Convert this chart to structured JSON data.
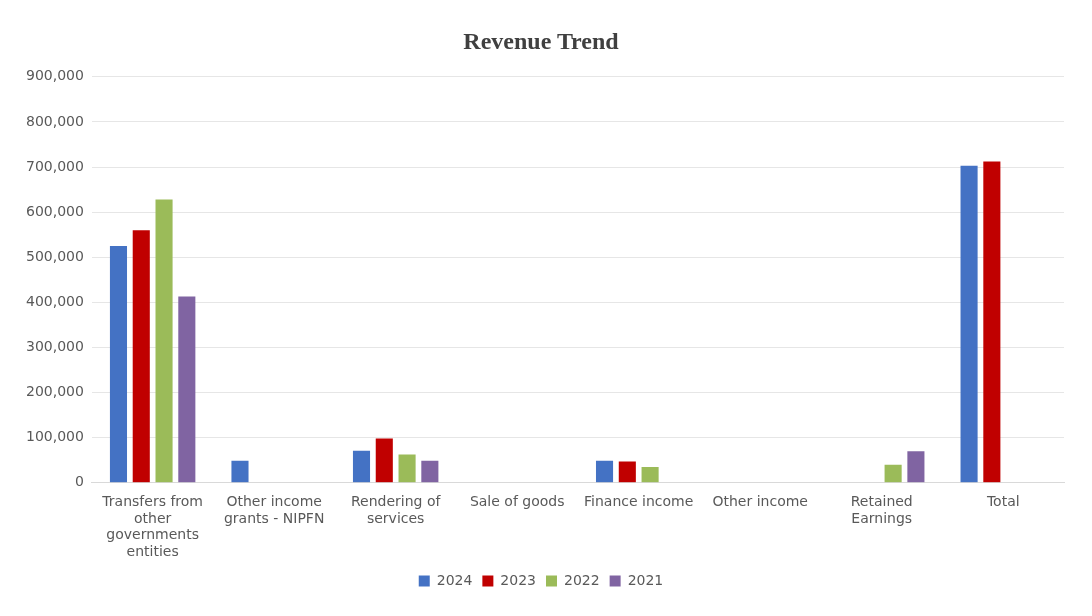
{
  "chart_data": {
    "type": "bar",
    "title": "Revenue Trend",
    "categories": [
      "Transfers from other governments entities",
      "Other income grants - NIPFN",
      "Rendering of services",
      "Sale of goods",
      "Finance income",
      "Other income",
      "Retained Earnings",
      "Total"
    ],
    "series": [
      {
        "name": "2024",
        "color": "#4472c4",
        "values": [
          525000,
          49000,
          71000,
          null,
          49000,
          null,
          null,
          703000
        ]
      },
      {
        "name": "2023",
        "color": "#c00000",
        "values": [
          560000,
          null,
          98000,
          null,
          47000,
          null,
          null,
          712000
        ]
      },
      {
        "name": "2022",
        "color": "#9bbb59",
        "values": [
          628000,
          null,
          63000,
          null,
          35000,
          null,
          40000,
          null
        ]
      },
      {
        "name": "2021",
        "color": "#8064a2",
        "values": [
          413000,
          null,
          49000,
          null,
          null,
          null,
          70000,
          null
        ]
      }
    ],
    "ylim": [
      0,
      900000
    ],
    "yticks": [
      {
        "value": 0,
        "label": "0"
      },
      {
        "value": 100000,
        "label": "100,000"
      },
      {
        "value": 200000,
        "label": "200,000"
      },
      {
        "value": 300000,
        "label": "300,000"
      },
      {
        "value": 400000,
        "label": "400,000"
      },
      {
        "value": 500000,
        "label": "500,000"
      },
      {
        "value": 600000,
        "label": "600,000"
      },
      {
        "value": 700000,
        "label": "700,000"
      },
      {
        "value": 800000,
        "label": "800,000"
      },
      {
        "value": 900000,
        "label": "900,000"
      }
    ],
    "grid": "y",
    "legend": "bottom"
  }
}
